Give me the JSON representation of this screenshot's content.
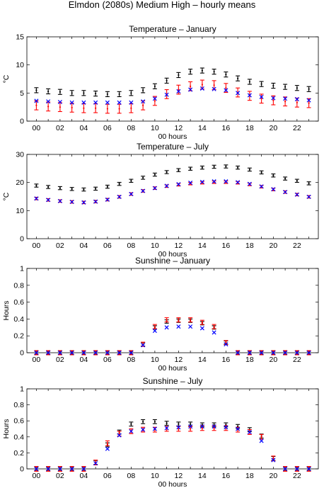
{
  "figure": {
    "title": "Elmdon (2080s) Medium High – hourly means"
  },
  "colors": {
    "black_series": "#000000",
    "red_series": "#ff0000",
    "blue_series": "#0000ff"
  },
  "chart_data": [
    {
      "type": "scatter",
      "title": "Temperature – January",
      "xlabel": "00 hours",
      "ylabel": "°C",
      "ylim": [
        0,
        15
      ],
      "yticks": [
        "0",
        "5",
        "10",
        "15"
      ],
      "xticks": [
        "00",
        "02",
        "04",
        "06",
        "08",
        "10",
        "12",
        "14",
        "16",
        "18",
        "20",
        "22"
      ],
      "x": [
        0,
        1,
        2,
        3,
        4,
        5,
        6,
        7,
        8,
        9,
        10,
        11,
        12,
        13,
        14,
        15,
        16,
        17,
        18,
        19,
        20,
        21,
        22,
        23
      ],
      "series": [
        {
          "marker": "errorbar",
          "color": "#000000",
          "values": [
            5.5,
            5.3,
            5.2,
            5.0,
            5.0,
            4.9,
            4.8,
            4.8,
            5.0,
            5.5,
            6.2,
            7.2,
            8.2,
            8.8,
            9.0,
            8.8,
            8.3,
            7.6,
            7.0,
            6.6,
            6.3,
            6.1,
            5.9,
            5.7
          ],
          "err": 0.45
        },
        {
          "marker": "errorbar",
          "color": "#ff0000",
          "values": [
            2.8,
            2.6,
            2.5,
            2.4,
            2.3,
            2.3,
            2.2,
            2.2,
            2.3,
            2.8,
            3.6,
            4.8,
            5.6,
            6.2,
            6.5,
            6.4,
            5.9,
            5.1,
            4.5,
            4.0,
            3.7,
            3.5,
            3.3,
            3.2
          ],
          "err": 0.8
        },
        {
          "marker": "x",
          "color": "#0000ff",
          "values": [
            3.6,
            3.5,
            3.4,
            3.3,
            3.3,
            3.3,
            3.3,
            3.3,
            3.3,
            3.5,
            4.0,
            4.7,
            5.3,
            5.6,
            5.8,
            5.7,
            5.5,
            5.0,
            4.6,
            4.3,
            4.1,
            4.0,
            3.9,
            3.7
          ]
        }
      ]
    },
    {
      "type": "scatter",
      "title": "Temperature – July",
      "xlabel": "00 hours",
      "ylabel": "°C",
      "ylim": [
        0,
        30
      ],
      "yticks": [
        "0",
        "10",
        "20",
        "30"
      ],
      "xticks": [
        "00",
        "02",
        "04",
        "06",
        "08",
        "10",
        "12",
        "14",
        "16",
        "18",
        "20",
        "22"
      ],
      "x": [
        0,
        1,
        2,
        3,
        4,
        5,
        6,
        7,
        8,
        9,
        10,
        11,
        12,
        13,
        14,
        15,
        16,
        17,
        18,
        19,
        20,
        21,
        22,
        23
      ],
      "series": [
        {
          "marker": "errorbar",
          "color": "#000000",
          "values": [
            18.9,
            18.4,
            18.0,
            17.7,
            17.5,
            17.8,
            18.5,
            19.5,
            20.6,
            21.7,
            22.8,
            23.7,
            24.4,
            24.9,
            25.3,
            25.6,
            25.7,
            25.3,
            24.6,
            23.6,
            22.5,
            21.4,
            20.6,
            19.7
          ],
          "err": 0.55
        },
        {
          "marker": "errorbar",
          "color": "#ff0000",
          "values": [
            14.3,
            13.8,
            13.4,
            13.1,
            12.9,
            13.2,
            13.9,
            14.9,
            15.9,
            17.0,
            18.0,
            18.7,
            19.2,
            19.6,
            19.9,
            20.1,
            20.1,
            19.9,
            19.3,
            18.5,
            17.5,
            16.6,
            15.7,
            14.9
          ],
          "err": 0.45
        },
        {
          "marker": "x",
          "color": "#0000ff",
          "values": [
            14.3,
            13.8,
            13.4,
            13.1,
            12.9,
            13.2,
            13.9,
            14.9,
            15.9,
            17.0,
            18.0,
            18.8,
            19.4,
            19.9,
            20.2,
            20.4,
            20.4,
            20.1,
            19.5,
            18.6,
            17.6,
            16.6,
            15.7,
            14.9
          ]
        }
      ]
    },
    {
      "type": "scatter",
      "title": "Sunshine – January",
      "xlabel": "00 hours",
      "ylabel": "Hours",
      "ylim": [
        0,
        1
      ],
      "yticks": [
        "0",
        "0.2",
        "0.4",
        "0.6",
        "0.8",
        "1"
      ],
      "xticks": [
        "00",
        "02",
        "04",
        "06",
        "08",
        "10",
        "12",
        "14",
        "16",
        "18",
        "20",
        "22"
      ],
      "x": [
        0,
        1,
        2,
        3,
        4,
        5,
        6,
        7,
        8,
        9,
        10,
        11,
        12,
        13,
        14,
        15,
        16,
        17,
        18,
        19,
        20,
        21,
        22,
        23
      ],
      "series": [
        {
          "marker": "errorbar",
          "color": "#000000",
          "values": [
            0,
            0,
            0,
            0,
            0,
            0,
            0,
            0,
            0,
            0.1,
            0.3,
            0.37,
            0.38,
            0.38,
            0.35,
            0.3,
            0.12,
            0,
            0,
            0,
            0,
            0,
            0,
            0
          ],
          "err": 0.02
        },
        {
          "marker": "errorbar",
          "color": "#ff0000",
          "values": [
            0,
            0,
            0,
            0,
            0,
            0,
            0,
            0,
            0,
            0.1,
            0.31,
            0.39,
            0.39,
            0.39,
            0.36,
            0.31,
            0.12,
            0,
            0,
            0,
            0,
            0,
            0,
            0
          ],
          "err": 0.025
        },
        {
          "marker": "x",
          "color": "#0000ff",
          "values": [
            0,
            0,
            0,
            0,
            0,
            0,
            0,
            0,
            0,
            0.09,
            0.26,
            0.3,
            0.31,
            0.31,
            0.29,
            0.24,
            0.1,
            0,
            0,
            0,
            0,
            0,
            0,
            0
          ]
        }
      ]
    },
    {
      "type": "scatter",
      "title": "Sunshine – July",
      "xlabel": "00 hours",
      "ylabel": "Hours",
      "ylim": [
        0,
        1
      ],
      "yticks": [
        "0",
        "0.2",
        "0.4",
        "0.6",
        "0.8",
        "1"
      ],
      "xticks": [
        "00",
        "02",
        "04",
        "06",
        "08",
        "10",
        "12",
        "14",
        "16",
        "18",
        "20",
        "22"
      ],
      "x": [
        0,
        1,
        2,
        3,
        4,
        5,
        6,
        7,
        8,
        9,
        10,
        11,
        12,
        13,
        14,
        15,
        16,
        17,
        18,
        19,
        20,
        21,
        22,
        23
      ],
      "series": [
        {
          "marker": "errorbar",
          "color": "#000000",
          "values": [
            0,
            0,
            0,
            0,
            0,
            0.08,
            0.3,
            0.46,
            0.56,
            0.59,
            0.59,
            0.57,
            0.56,
            0.56,
            0.55,
            0.55,
            0.55,
            0.53,
            0.49,
            0.41,
            0.13,
            0,
            0,
            0
          ],
          "err": 0.025
        },
        {
          "marker": "errorbar",
          "color": "#ff0000",
          "values": [
            0,
            0,
            0,
            0,
            0,
            0.08,
            0.32,
            0.44,
            0.47,
            0.49,
            0.49,
            0.5,
            0.5,
            0.5,
            0.51,
            0.51,
            0.51,
            0.49,
            0.46,
            0.4,
            0.13,
            0,
            0,
            0
          ],
          "err": 0.03
        },
        {
          "marker": "x",
          "color": "#0000ff",
          "values": [
            0,
            0,
            0,
            0,
            0,
            0.07,
            0.25,
            0.42,
            0.47,
            0.49,
            0.5,
            0.51,
            0.52,
            0.53,
            0.53,
            0.53,
            0.52,
            0.5,
            0.46,
            0.35,
            0.11,
            0,
            0,
            0
          ]
        }
      ]
    }
  ]
}
